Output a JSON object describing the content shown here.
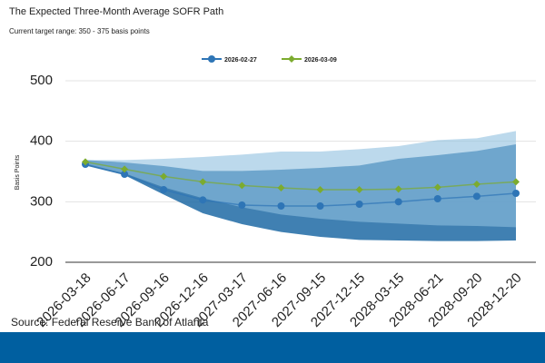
{
  "chart_data": {
    "type": "line",
    "title": "The Expected Three-Month Average SOFR Path",
    "subtitle": "Current target range: 350 - 375 basis points",
    "y_label": "Basis Points",
    "source": "Source: Federal Reserve Bank of Atlanta",
    "categories": [
      "2026-03-18",
      "2026-06-17",
      "2026-09-16",
      "2026-12-16",
      "2027-03-17",
      "2027-06-16",
      "2027-09-15",
      "2027-12-15",
      "2028-03-15",
      "2028-06-21",
      "2028-09-20",
      "2028-12-20"
    ],
    "series": [
      {
        "name": "2026-02-27",
        "color": "#2e75b6",
        "marker": "circle",
        "values": [
          362,
          345.5,
          320,
          303,
          294.5,
          293,
          293,
          296,
          300,
          305,
          309,
          314
        ]
      },
      {
        "name": "2026-03-09",
        "color": "#7cab2f",
        "marker": "diamond",
        "values": [
          366,
          354,
          342,
          333,
          327,
          323,
          320,
          320,
          321,
          324,
          329,
          333
        ]
      }
    ],
    "bands": [
      {
        "color": "#1f6aa5",
        "lower": [
          360,
          344,
          312,
          281,
          263,
          250,
          242,
          237,
          236,
          235,
          235,
          236
        ],
        "upper": [
          369,
          365,
          359,
          351,
          351,
          353,
          356,
          360,
          371,
          377,
          384,
          395
        ]
      },
      {
        "color": "#8fbfe0",
        "lower": [
          362,
          347,
          324,
          306,
          291,
          279,
          272,
          267,
          264,
          261,
          260,
          258
        ],
        "upper": [
          369,
          369,
          371,
          374,
          378,
          383,
          383,
          387,
          392,
          402,
          405,
          417
        ]
      }
    ],
    "ylim": [
      200,
      500
    ],
    "yticks": [
      200,
      300,
      400,
      500
    ],
    "grid": true
  }
}
